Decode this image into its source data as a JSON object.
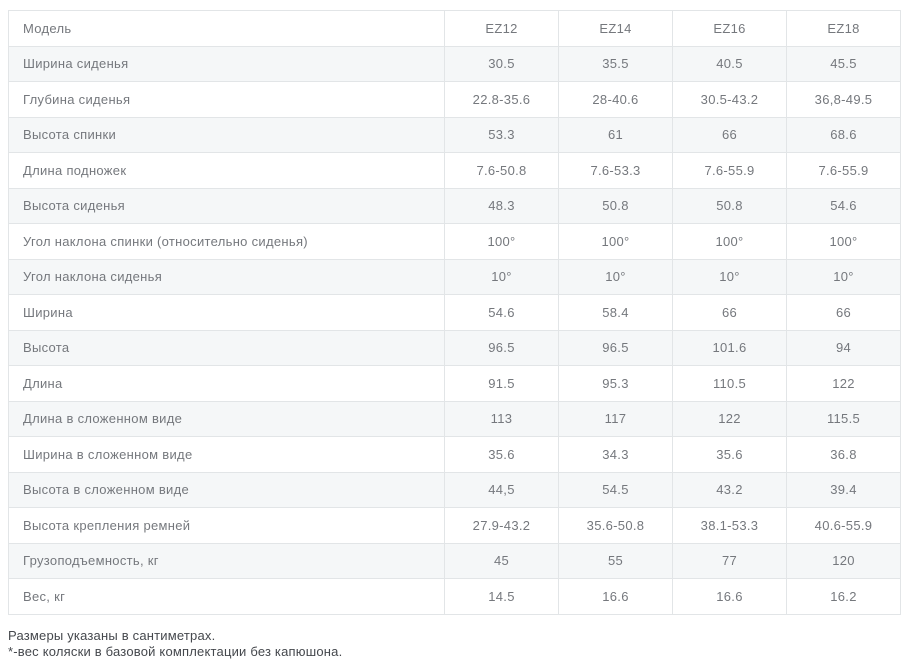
{
  "table": {
    "header": {
      "label": "Модель",
      "columns": [
        "EZ12",
        "EZ14",
        "EZ16",
        "EZ18"
      ]
    },
    "rows": [
      {
        "label": "Ширина сиденья",
        "values": [
          "30.5",
          "35.5",
          "40.5",
          "45.5"
        ]
      },
      {
        "label": "Глубина сиденья",
        "values": [
          "22.8-35.6",
          "28-40.6",
          "30.5-43.2",
          "36,8-49.5"
        ]
      },
      {
        "label": "Высота спинки",
        "values": [
          "53.3",
          "61",
          "66",
          "68.6"
        ]
      },
      {
        "label": "Длина подножек",
        "values": [
          "7.6-50.8",
          "7.6-53.3",
          "7.6-55.9",
          "7.6-55.9"
        ]
      },
      {
        "label": "Высота сиденья",
        "values": [
          "48.3",
          "50.8",
          "50.8",
          "54.6"
        ]
      },
      {
        "label": "Угол наклона спинки (относительно сиденья)",
        "values": [
          "100°",
          "100°",
          "100°",
          "100°"
        ]
      },
      {
        "label": "Угол наклона сиденья",
        "values": [
          "10°",
          "10°",
          "10°",
          "10°"
        ]
      },
      {
        "label": "Ширина",
        "values": [
          "54.6",
          "58.4",
          "66",
          "66"
        ]
      },
      {
        "label": "Высота",
        "values": [
          "96.5",
          "96.5",
          "101.6",
          "94"
        ]
      },
      {
        "label": "Длина",
        "values": [
          "91.5",
          "95.3",
          "110.5",
          "122"
        ]
      },
      {
        "label": "Длина в сложенном виде",
        "values": [
          "113",
          "117",
          "122",
          "115.5"
        ]
      },
      {
        "label": "Ширина в сложенном виде",
        "values": [
          "35.6",
          "34.3",
          "35.6",
          "36.8"
        ]
      },
      {
        "label": "Высота в сложенном виде",
        "values": [
          "44,5",
          "54.5",
          "43.2",
          "39.4"
        ]
      },
      {
        "label": "Высота крепления ремней",
        "values": [
          "27.9-43.2",
          "35.6-50.8",
          "38.1-53.3",
          "40.6-55.9"
        ]
      },
      {
        "label": "Грузоподъемность, кг",
        "values": [
          "45",
          "55",
          "77",
          "120"
        ]
      },
      {
        "label": "Вес, кг",
        "values": [
          "14.5",
          "16.6",
          "16.6",
          "16.2"
        ]
      }
    ]
  },
  "notes": [
    "Размеры указаны в сантиметрах.",
    "*-вес коляски в базовой комплектации без капюшона."
  ],
  "colors": {
    "row_stripe": "#f5f7f8",
    "border": "#e2e5e7",
    "cell_text": "#75787d",
    "note_text": "#45484d",
    "background": "#ffffff"
  }
}
